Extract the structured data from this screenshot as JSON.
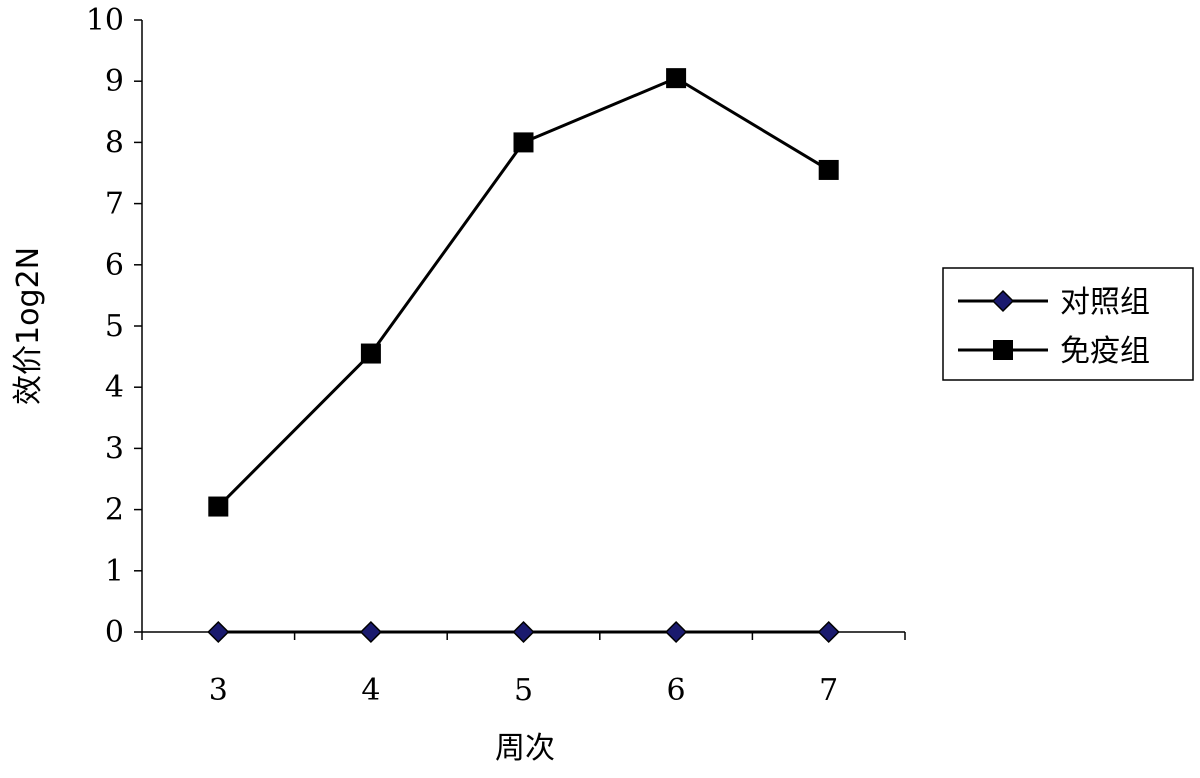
{
  "chart_data": {
    "type": "line",
    "categories": [
      "3",
      "4",
      "5",
      "6",
      "7"
    ],
    "xlabel": "周次",
    "ylabel": "效价1og2N",
    "ylim": [
      0,
      10
    ],
    "yticks": [
      "0",
      "1",
      "2",
      "3",
      "4",
      "5",
      "6",
      "7",
      "8",
      "9",
      "10"
    ],
    "grid": false,
    "legend_position": "right",
    "series": [
      {
        "name": "对照组",
        "values": [
          0,
          0,
          0,
          0,
          0
        ],
        "marker": "diamond",
        "marker_color": "#1a1a6e",
        "line_color": "#000000"
      },
      {
        "name": "免疫组",
        "values": [
          2.05,
          4.55,
          8.0,
          9.05,
          7.55
        ],
        "marker": "square",
        "marker_color": "#000000",
        "line_color": "#000000"
      }
    ]
  }
}
